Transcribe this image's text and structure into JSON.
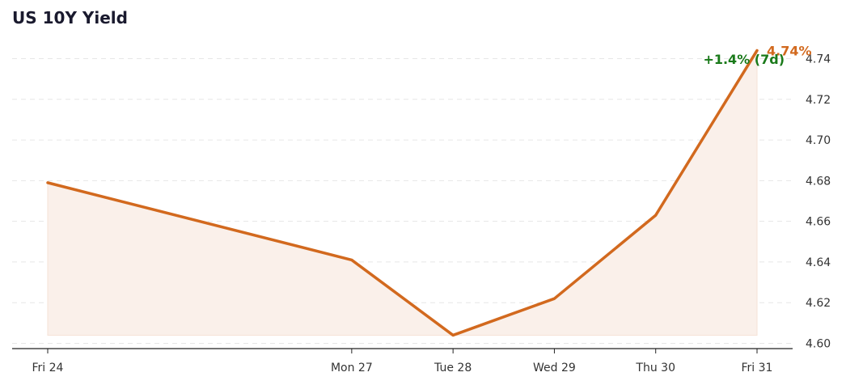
{
  "chart_data": {
    "type": "area",
    "title": "US 10Y Yield",
    "x": [
      "Fri 24",
      "Mon 27",
      "Tue 28",
      "Wed 29",
      "Thu 30",
      "Fri 31"
    ],
    "x_days": [
      0,
      3,
      4,
      5,
      6,
      7
    ],
    "values": [
      4.679,
      4.641,
      4.604,
      4.622,
      4.663,
      4.744
    ],
    "ylim": [
      4.596,
      4.748
    ],
    "yticks": [
      "4.60",
      "4.62",
      "4.64",
      "4.66",
      "4.68",
      "4.70",
      "4.72",
      "4.74"
    ],
    "grid": true,
    "y_axis_side": "right",
    "last_value_label": "4.74%",
    "change_label": "+1.4% (7d)",
    "colors": {
      "line": "#d2691e",
      "fill": "#faf0ea",
      "change": "#1a7a1a",
      "title": "#1a1a2e"
    }
  }
}
